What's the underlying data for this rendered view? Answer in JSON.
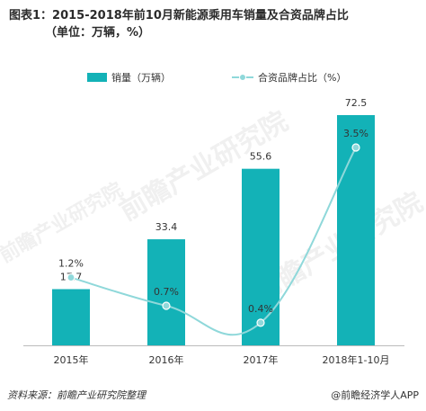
{
  "title_line1": "图表1：2015-2018年前10月新能源乘用车销量及合资品牌占比",
  "title_line2": "（单位：万辆，%）",
  "footer_source": "资料来源：前瞻产业研究院整理",
  "footer_brand": "@前瞻经济学人APP",
  "watermark": "前瞻产业研究院",
  "colors": {
    "bar": "#13b2b7",
    "line": "#8fd8da",
    "marker": "#8fd8da",
    "axis": "#bbbbbb"
  },
  "chart_data": {
    "type": "bar",
    "title": "图表1：2015-2018年前10月新能源乘用车销量及合资品牌占比（单位：万辆，%）",
    "categories": [
      "2015年",
      "2016年",
      "2017年",
      "2018年1-10月"
    ],
    "series": [
      {
        "name": "销量（万辆）",
        "type": "bar",
        "values": [
          17.7,
          33.4,
          55.6,
          72.5
        ],
        "labels": [
          "17.7",
          "33.4",
          "55.6",
          "72.5"
        ]
      },
      {
        "name": "合资品牌占比（%）",
        "type": "line",
        "values": [
          1.2,
          0.7,
          0.4,
          3.5
        ],
        "labels": [
          "1.2%",
          "0.7%",
          "0.4%",
          "3.5%"
        ]
      }
    ],
    "ylim_bar": [
      0,
      80
    ],
    "ylim_line": [
      0,
      4
    ],
    "legend_position": "top",
    "grid": false
  }
}
